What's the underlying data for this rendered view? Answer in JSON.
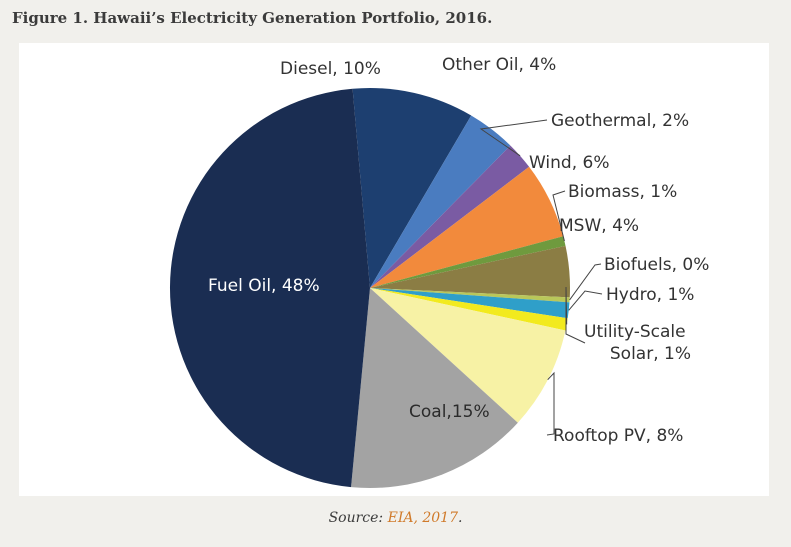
{
  "title": "Figure 1. Hawaii’s Electricity Generation Portfolio, 2016.",
  "source": {
    "prefix": "Source: ",
    "link_text": "EIA, 2017",
    "suffix": "."
  },
  "chart_data": {
    "type": "pie",
    "start_angle_deg": 95,
    "direction": "clockwise",
    "slices": [
      {
        "label": "Diesel, 10%",
        "value": 10,
        "color": "#1d3f70"
      },
      {
        "label": "Other Oil, 4%",
        "value": 4,
        "color": "#4a7cc0"
      },
      {
        "label": "Geothermal, 2%",
        "value": 2.3,
        "color": "#7a5ba3"
      },
      {
        "label": "Wind, 6%",
        "value": 6.3,
        "color": "#f28a3c"
      },
      {
        "label": "Biomass, 1%",
        "value": 0.8,
        "color": "#6f9a3e"
      },
      {
        "label": "MSW, 4%",
        "value": 4.2,
        "color": "#8b7d44"
      },
      {
        "label": "Biofuels, 0%",
        "value": 0.4,
        "color": "#b9c75a"
      },
      {
        "label": "Hydro, 1%",
        "value": 1.3,
        "color": "#2f9fc9"
      },
      {
        "label": "Utility-Scale Solar, 1%",
        "value": 1.0,
        "color": "#f2ea1e"
      },
      {
        "label": "Rooftop PV, 8%",
        "value": 8.5,
        "color": "#f7f2a5"
      },
      {
        "label": "Coal,15%",
        "value": 15,
        "color": "#a3a3a3"
      },
      {
        "label": "Fuel Oil, 48%",
        "value": 47.9,
        "color": "#1a2d52"
      }
    ]
  }
}
